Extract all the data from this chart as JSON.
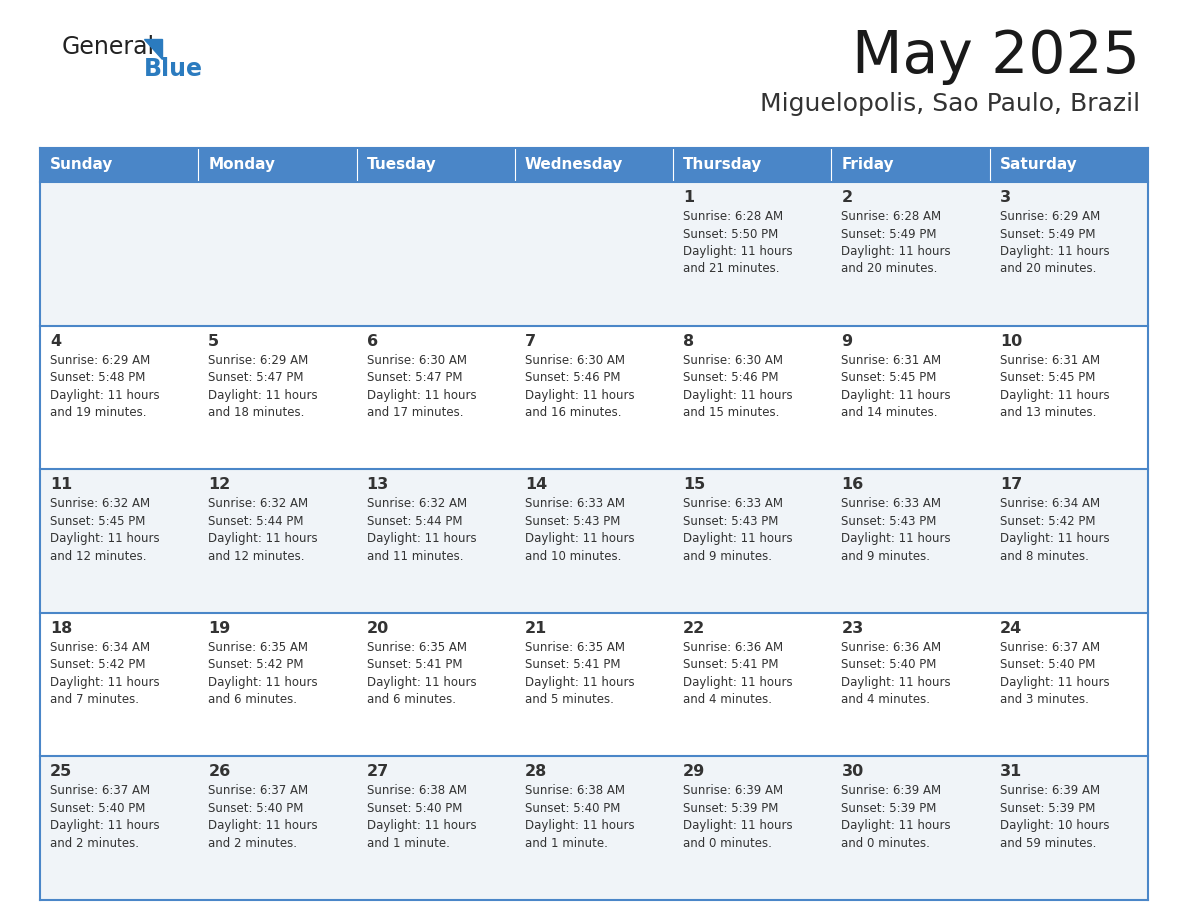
{
  "title": "May 2025",
  "subtitle": "Miguelopolis, Sao Paulo, Brazil",
  "header_bg": "#4a86c8",
  "header_text_color": "#ffffff",
  "cell_bg_light": "#f0f4f8",
  "cell_bg_white": "#ffffff",
  "border_color": "#4a86c8",
  "text_color": "#333333",
  "day_names": [
    "Sunday",
    "Monday",
    "Tuesday",
    "Wednesday",
    "Thursday",
    "Friday",
    "Saturday"
  ],
  "weeks": [
    [
      {
        "day": "",
        "info": ""
      },
      {
        "day": "",
        "info": ""
      },
      {
        "day": "",
        "info": ""
      },
      {
        "day": "",
        "info": ""
      },
      {
        "day": "1",
        "info": "Sunrise: 6:28 AM\nSunset: 5:50 PM\nDaylight: 11 hours\nand 21 minutes."
      },
      {
        "day": "2",
        "info": "Sunrise: 6:28 AM\nSunset: 5:49 PM\nDaylight: 11 hours\nand 20 minutes."
      },
      {
        "day": "3",
        "info": "Sunrise: 6:29 AM\nSunset: 5:49 PM\nDaylight: 11 hours\nand 20 minutes."
      }
    ],
    [
      {
        "day": "4",
        "info": "Sunrise: 6:29 AM\nSunset: 5:48 PM\nDaylight: 11 hours\nand 19 minutes."
      },
      {
        "day": "5",
        "info": "Sunrise: 6:29 AM\nSunset: 5:47 PM\nDaylight: 11 hours\nand 18 minutes."
      },
      {
        "day": "6",
        "info": "Sunrise: 6:30 AM\nSunset: 5:47 PM\nDaylight: 11 hours\nand 17 minutes."
      },
      {
        "day": "7",
        "info": "Sunrise: 6:30 AM\nSunset: 5:46 PM\nDaylight: 11 hours\nand 16 minutes."
      },
      {
        "day": "8",
        "info": "Sunrise: 6:30 AM\nSunset: 5:46 PM\nDaylight: 11 hours\nand 15 minutes."
      },
      {
        "day": "9",
        "info": "Sunrise: 6:31 AM\nSunset: 5:45 PM\nDaylight: 11 hours\nand 14 minutes."
      },
      {
        "day": "10",
        "info": "Sunrise: 6:31 AM\nSunset: 5:45 PM\nDaylight: 11 hours\nand 13 minutes."
      }
    ],
    [
      {
        "day": "11",
        "info": "Sunrise: 6:32 AM\nSunset: 5:45 PM\nDaylight: 11 hours\nand 12 minutes."
      },
      {
        "day": "12",
        "info": "Sunrise: 6:32 AM\nSunset: 5:44 PM\nDaylight: 11 hours\nand 12 minutes."
      },
      {
        "day": "13",
        "info": "Sunrise: 6:32 AM\nSunset: 5:44 PM\nDaylight: 11 hours\nand 11 minutes."
      },
      {
        "day": "14",
        "info": "Sunrise: 6:33 AM\nSunset: 5:43 PM\nDaylight: 11 hours\nand 10 minutes."
      },
      {
        "day": "15",
        "info": "Sunrise: 6:33 AM\nSunset: 5:43 PM\nDaylight: 11 hours\nand 9 minutes."
      },
      {
        "day": "16",
        "info": "Sunrise: 6:33 AM\nSunset: 5:43 PM\nDaylight: 11 hours\nand 9 minutes."
      },
      {
        "day": "17",
        "info": "Sunrise: 6:34 AM\nSunset: 5:42 PM\nDaylight: 11 hours\nand 8 minutes."
      }
    ],
    [
      {
        "day": "18",
        "info": "Sunrise: 6:34 AM\nSunset: 5:42 PM\nDaylight: 11 hours\nand 7 minutes."
      },
      {
        "day": "19",
        "info": "Sunrise: 6:35 AM\nSunset: 5:42 PM\nDaylight: 11 hours\nand 6 minutes."
      },
      {
        "day": "20",
        "info": "Sunrise: 6:35 AM\nSunset: 5:41 PM\nDaylight: 11 hours\nand 6 minutes."
      },
      {
        "day": "21",
        "info": "Sunrise: 6:35 AM\nSunset: 5:41 PM\nDaylight: 11 hours\nand 5 minutes."
      },
      {
        "day": "22",
        "info": "Sunrise: 6:36 AM\nSunset: 5:41 PM\nDaylight: 11 hours\nand 4 minutes."
      },
      {
        "day": "23",
        "info": "Sunrise: 6:36 AM\nSunset: 5:40 PM\nDaylight: 11 hours\nand 4 minutes."
      },
      {
        "day": "24",
        "info": "Sunrise: 6:37 AM\nSunset: 5:40 PM\nDaylight: 11 hours\nand 3 minutes."
      }
    ],
    [
      {
        "day": "25",
        "info": "Sunrise: 6:37 AM\nSunset: 5:40 PM\nDaylight: 11 hours\nand 2 minutes."
      },
      {
        "day": "26",
        "info": "Sunrise: 6:37 AM\nSunset: 5:40 PM\nDaylight: 11 hours\nand 2 minutes."
      },
      {
        "day": "27",
        "info": "Sunrise: 6:38 AM\nSunset: 5:40 PM\nDaylight: 11 hours\nand 1 minute."
      },
      {
        "day": "28",
        "info": "Sunrise: 6:38 AM\nSunset: 5:40 PM\nDaylight: 11 hours\nand 1 minute."
      },
      {
        "day": "29",
        "info": "Sunrise: 6:39 AM\nSunset: 5:39 PM\nDaylight: 11 hours\nand 0 minutes."
      },
      {
        "day": "30",
        "info": "Sunrise: 6:39 AM\nSunset: 5:39 PM\nDaylight: 11 hours\nand 0 minutes."
      },
      {
        "day": "31",
        "info": "Sunrise: 6:39 AM\nSunset: 5:39 PM\nDaylight: 10 hours\nand 59 minutes."
      }
    ]
  ]
}
